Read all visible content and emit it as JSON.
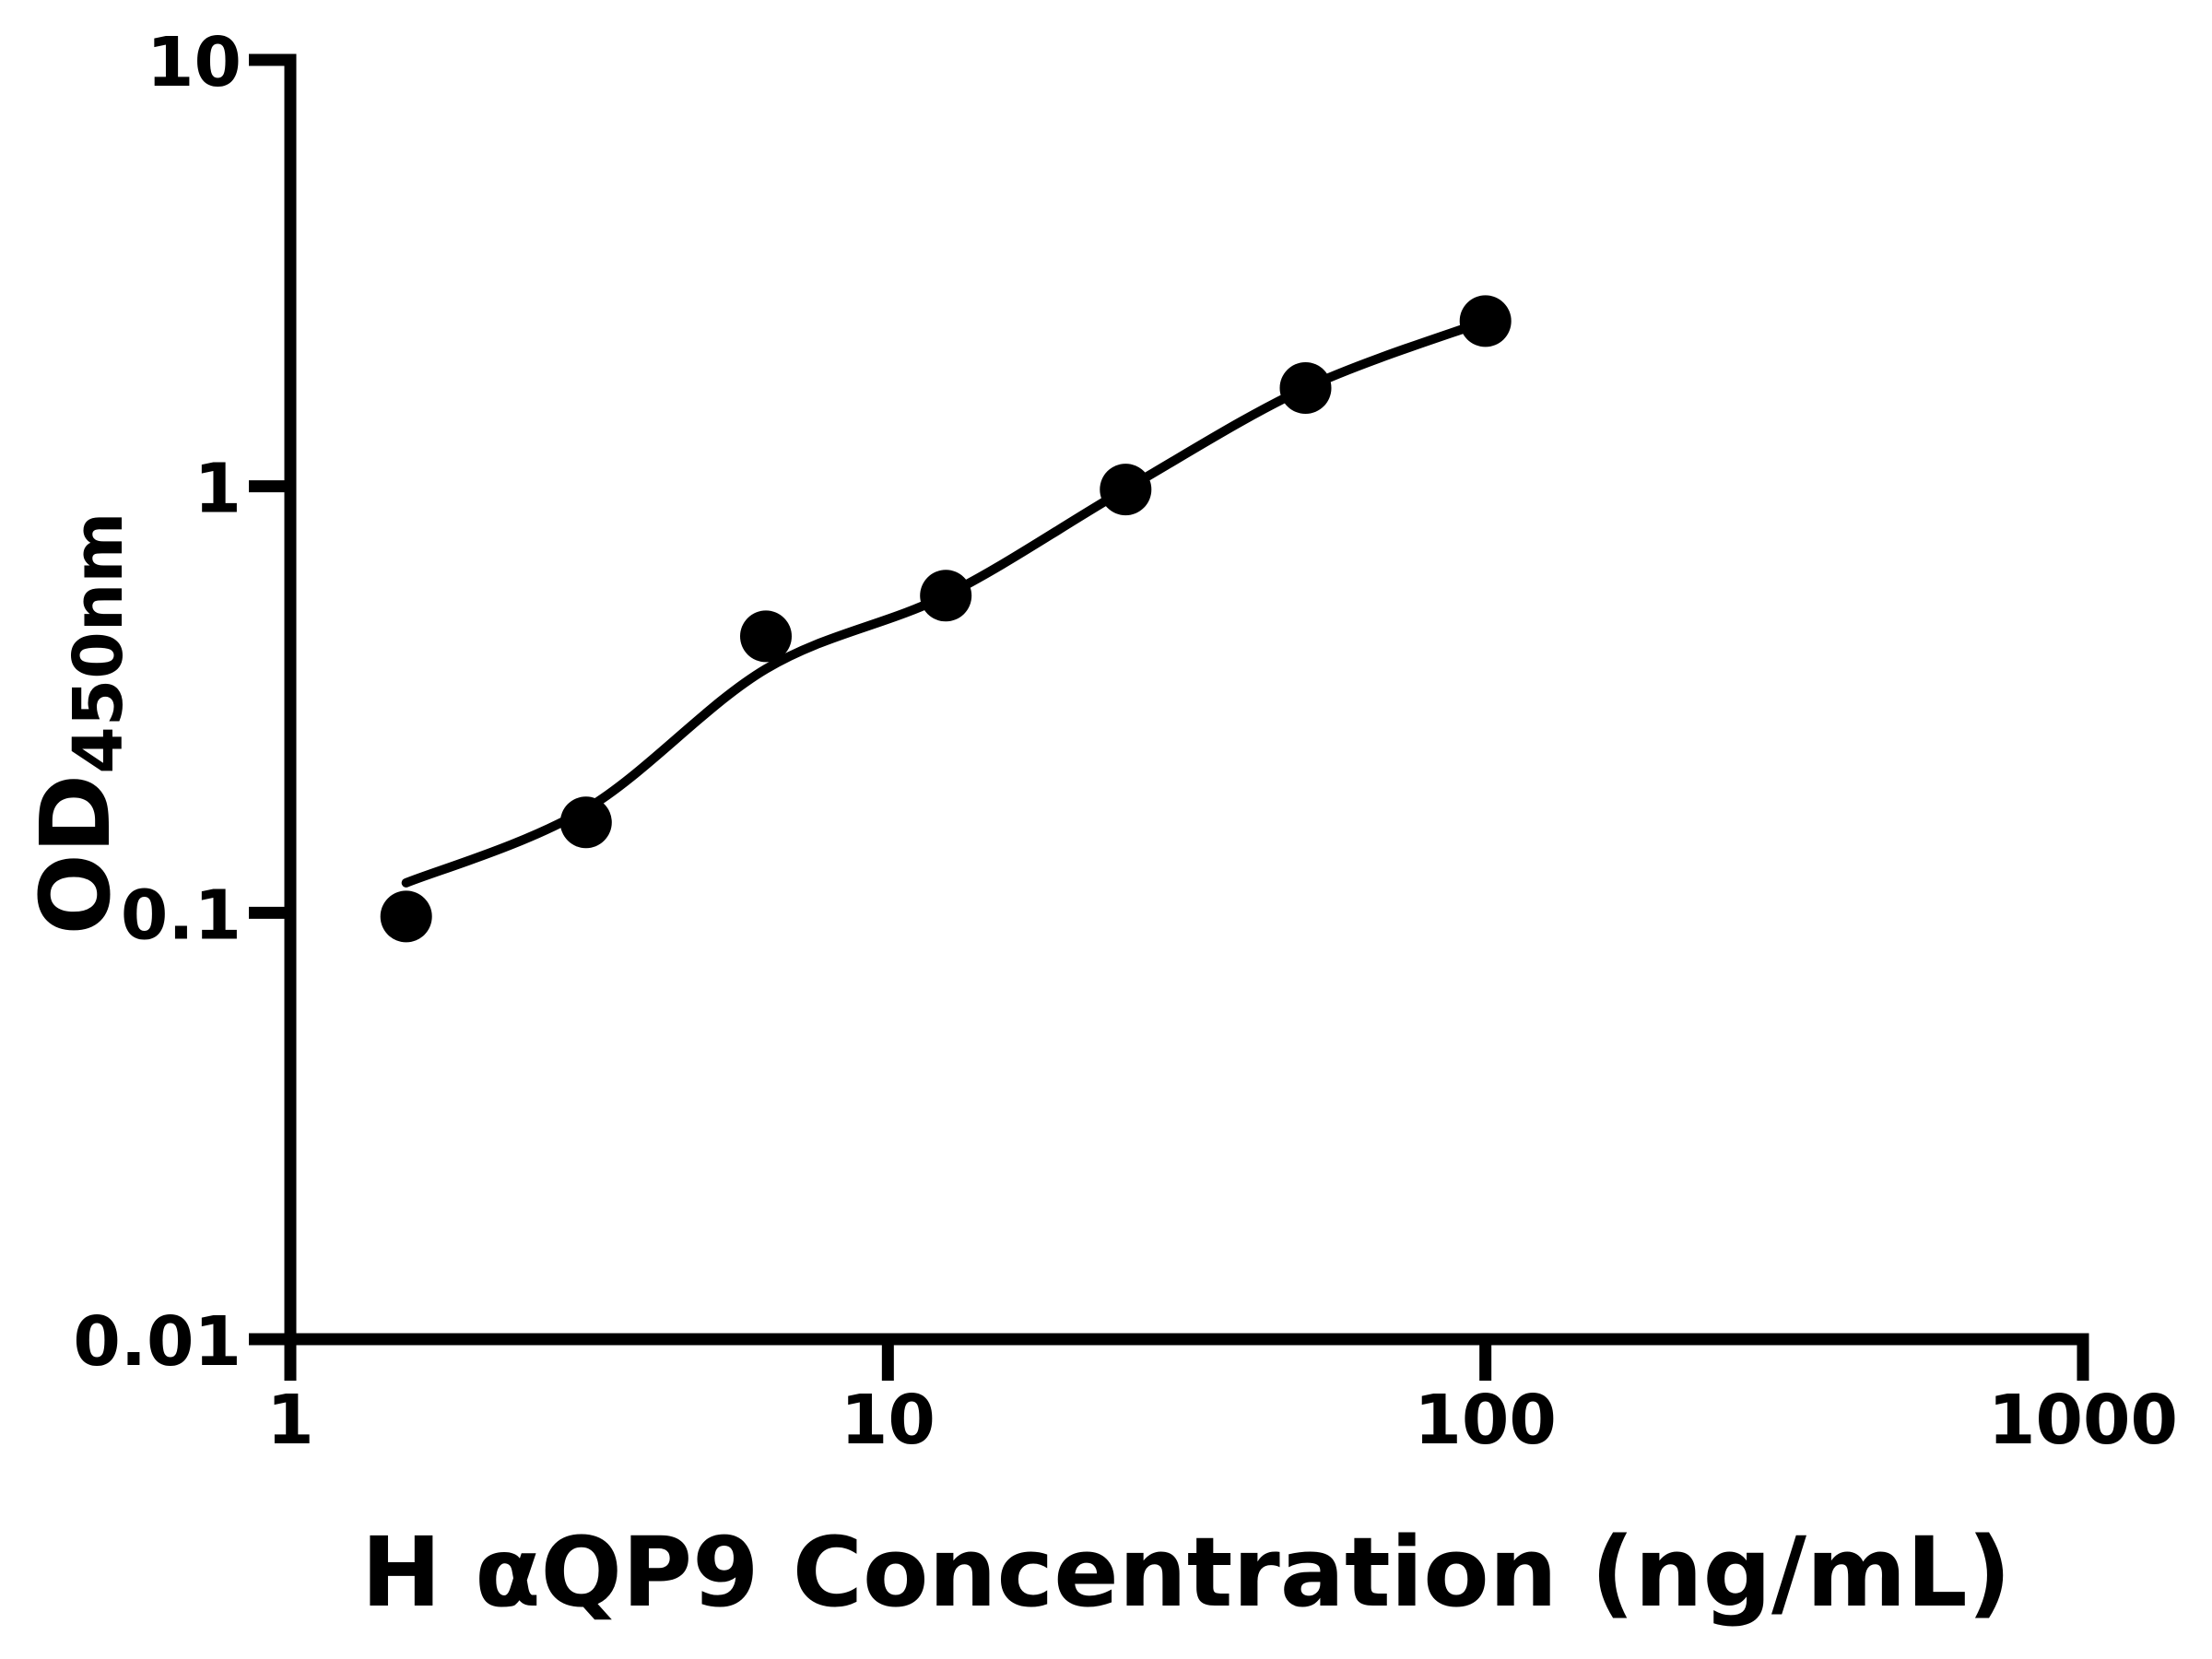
{
  "figure": {
    "background_color": "#ffffff",
    "ink_color": "#000000"
  },
  "chart_data": {
    "type": "scatter",
    "title": "",
    "xlabel": "H αQP9 Concentration (ng/mL)",
    "ylabel": "OD450nm",
    "ylabel_main": "OD",
    "ylabel_sub": "450nm",
    "x_scale": "log10",
    "y_scale": "log10",
    "xlim": [
      1,
      1000
    ],
    "ylim": [
      0.01,
      10
    ],
    "x_tick_values": [
      1,
      10,
      100,
      1000
    ],
    "x_tick_labels": [
      "1",
      "10",
      "100",
      "1000"
    ],
    "y_tick_values": [
      10,
      1,
      0.1,
      0.01
    ],
    "y_tick_labels": [
      "10",
      "1",
      "0.1",
      "0.01"
    ],
    "grid": false,
    "legend_position": "none",
    "series": [
      {
        "name": "standard-points",
        "type": "scatter",
        "marker": "filled-circle",
        "color": "#000000",
        "x": [
          1.5625,
          3.125,
          6.25,
          12.5,
          25,
          50,
          100
        ],
        "y": [
          0.098,
          0.163,
          0.445,
          0.554,
          0.983,
          1.7,
          2.44
        ]
      },
      {
        "name": "fit-curve",
        "type": "line",
        "color": "#000000",
        "x": [
          1.5625,
          3.125,
          6.25,
          12.5,
          25,
          50,
          100
        ],
        "y": [
          0.1175,
          0.175,
          0.373,
          0.555,
          0.985,
          1.7,
          2.44
        ]
      }
    ]
  }
}
